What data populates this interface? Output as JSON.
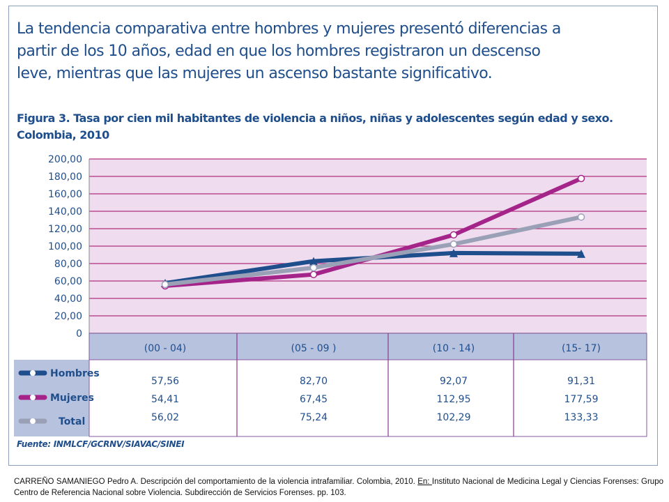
{
  "intro_text": "La tendencia comparativa entre hombres y mujeres presentó diferencias a partir de los 10 años, edad en que los hombres registraron un descenso leve, mientras que las mujeres un ascenso bastante significativo.",
  "figure_title_line1": "Figura 3. Tasa por cien mil habitantes de violencia a niños, niñas y adolescentes según edad y sexo.",
  "figure_title_line2": "Colombia, 2010",
  "source": "Fuente: INMLCF/GCRNV/SIAVAC/SINEI",
  "citation": {
    "part1": "CARREÑO SAMANIEGO Pedro A. Descripción del comportamiento de la violencia intrafamiliar. Colombia,  2010. ",
    "underlined": "En: ",
    "part2": "Instituto Nacional de Medicina Legal y Ciencias Forenses: Grupo Centro de Referencia Nacional sobre Violencia. Subdirección de Servicios Forenses. pp. 103."
  },
  "chart_data": {
    "type": "line",
    "categories": [
      "(00 - 04)",
      "(05 - 09 )",
      "(10 - 14)",
      "(15- 17)"
    ],
    "ylim": [
      0,
      200
    ],
    "yticks": [
      "0",
      "20,00",
      "40,00",
      "60,00",
      "80,00",
      "100,00",
      "120,00",
      "140,00",
      "160,00",
      "180,00",
      "200,00"
    ],
    "grid": true,
    "legend_position": "table-left",
    "series": [
      {
        "name": "Hombres",
        "values": [
          57.56,
          82.7,
          92.07,
          91.31
        ],
        "labels": [
          "57,56",
          "82,70",
          "92,07",
          "91,31"
        ],
        "color": "#1f4e8c"
      },
      {
        "name": "Mujeres",
        "values": [
          54.41,
          67.45,
          112.95,
          177.59
        ],
        "labels": [
          "54,41",
          "67,45",
          "112,95",
          "177,59"
        ],
        "color": "#a4248a"
      },
      {
        "name": "Total",
        "values": [
          56.02,
          75.24,
          102.29,
          133.33
        ],
        "labels": [
          "56,02",
          "75,24",
          "102,29",
          "133,33"
        ],
        "color": "#9aa0b6"
      }
    ],
    "colors": {
      "plot_bg": "#f0dcef",
      "grid": "#b0307e",
      "band": "#b7c2df",
      "table_bg": "#ffffff",
      "text": "#1f4e8c"
    }
  }
}
